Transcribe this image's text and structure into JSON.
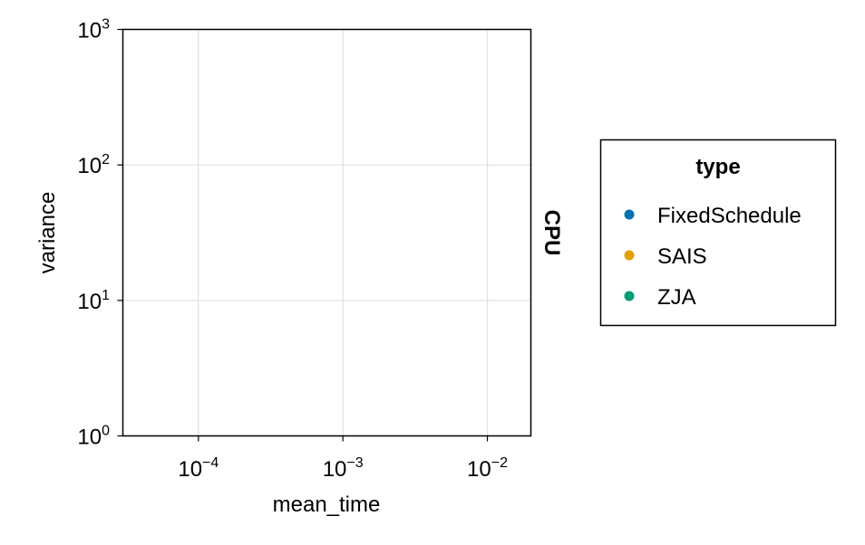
{
  "chart_data": {
    "type": "scatter",
    "title": "",
    "xlabel": "mean_time",
    "ylabel": "variance",
    "facet_label": "CPU",
    "x_scale": "log10",
    "y_scale": "log10",
    "xlim": [
      3e-05,
      0.02
    ],
    "ylim": [
      1,
      1000
    ],
    "x_ticks": [
      {
        "value": 0.0001,
        "base": "10",
        "exp": "−4"
      },
      {
        "value": 0.001,
        "base": "10",
        "exp": "−3"
      },
      {
        "value": 0.01,
        "base": "10",
        "exp": "−2"
      }
    ],
    "y_ticks": [
      {
        "value": 1,
        "base": "10",
        "exp": "0"
      },
      {
        "value": 10,
        "base": "10",
        "exp": "1"
      },
      {
        "value": 100,
        "base": "10",
        "exp": "2"
      },
      {
        "value": 1000,
        "base": "10",
        "exp": "3"
      }
    ],
    "grid": true,
    "legend": {
      "title": "type",
      "placement": "right",
      "entries": [
        {
          "label": "FixedSchedule",
          "color": "#0072b2"
        },
        {
          "label": "SAIS",
          "color": "#e69f00"
        },
        {
          "label": "ZJA",
          "color": "#009e73"
        }
      ]
    },
    "series": [
      {
        "name": "FixedSchedule",
        "color": "#0072b2",
        "points": []
      },
      {
        "name": "SAIS",
        "color": "#e69f00",
        "points": []
      },
      {
        "name": "ZJA",
        "color": "#009e73",
        "points": []
      }
    ]
  }
}
